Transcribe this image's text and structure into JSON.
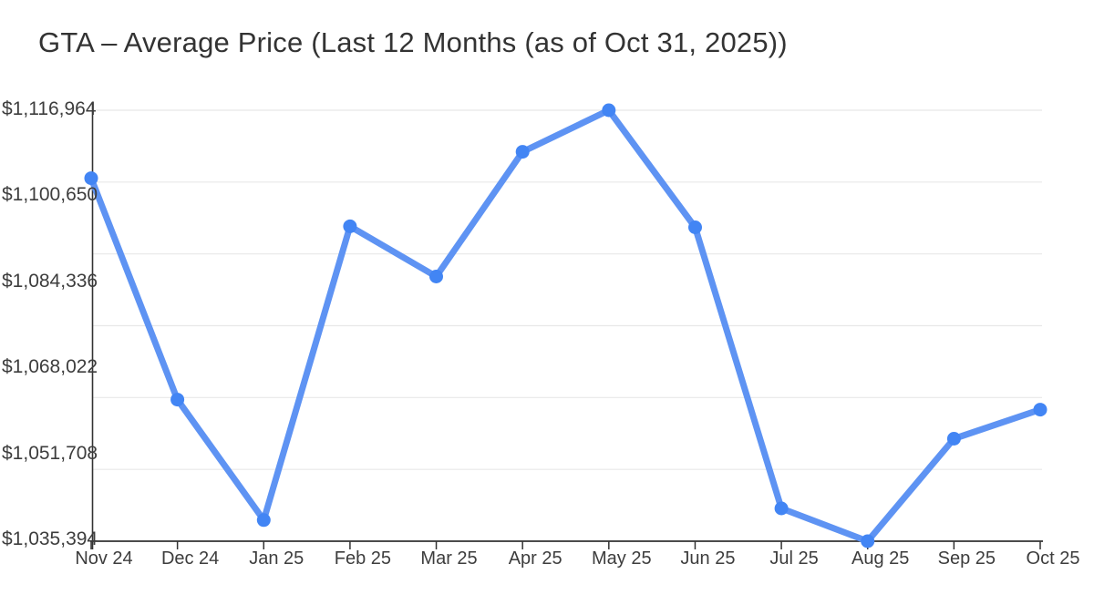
{
  "chart_data": {
    "type": "line",
    "title": "GTA – Average Price (Last 12 Months (as of Oct 31, 2025))",
    "categories": [
      "Nov 24",
      "Dec 24",
      "Jan 25",
      "Feb 25",
      "Mar 25",
      "Apr 25",
      "May 25",
      "Jun 25",
      "Jul 25",
      "Aug 25",
      "Sep 25",
      "Oct 25"
    ],
    "series": [
      {
        "name": "Average Price",
        "values": [
          1104100,
          1062200,
          1039400,
          1095000,
          1085500,
          1109100,
          1116964,
          1094800,
          1041600,
          1035394,
          1054800,
          1060300
        ]
      }
    ],
    "y_tick_labels": [
      "$1,116,964",
      "$1,100,650",
      "$1,084,336",
      "$1,068,022",
      "$1,051,708",
      "$1,035,394"
    ],
    "x_tick_labels": [
      "Nov 24",
      "Dec 24",
      "Jan 25",
      "Feb 25",
      "Mar 25",
      "Apr 25",
      "May 25",
      "Jun 25",
      "Jul 25",
      "Aug 25",
      "Sep 25",
      "Oct 25"
    ],
    "ylim": [
      1035394,
      1116964
    ],
    "xlabel": "",
    "ylabel": "",
    "grid": "horizontal",
    "gridline_count": 7,
    "legend": "none",
    "marker": "circle",
    "colors": {
      "line": "#5e93f3",
      "marker": "#4285f4",
      "grid": "#e8e8e8",
      "axis": "#333333",
      "tick_text": "#3d3d3d",
      "title_text": "#333333",
      "background": "#ffffff"
    }
  }
}
